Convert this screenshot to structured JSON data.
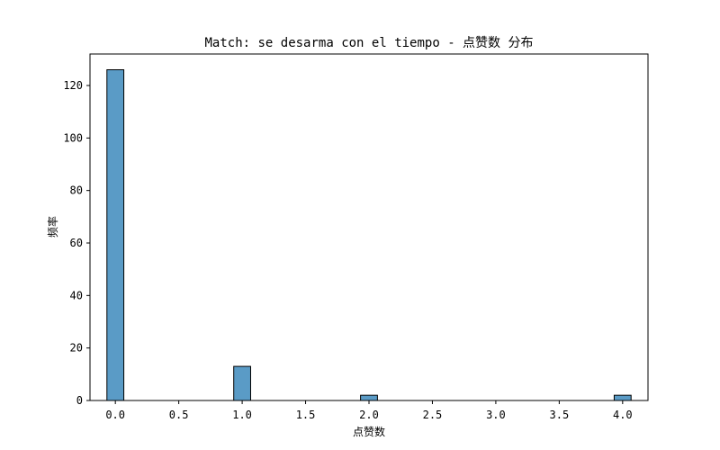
{
  "chart_data": {
    "type": "bar",
    "title": "Match: se desarma con el tiempo - 点赞数 分布",
    "xlabel": "点赞数",
    "ylabel": "频率",
    "xlim": [
      -0.2,
      4.2
    ],
    "ylim": [
      0,
      132
    ],
    "x_ticks": [
      0.0,
      0.5,
      1.0,
      1.5,
      2.0,
      2.5,
      3.0,
      3.5,
      4.0
    ],
    "x_tick_labels": [
      "0.0",
      "0.5",
      "1.0",
      "1.5",
      "2.0",
      "2.5",
      "3.0",
      "3.5",
      "4.0"
    ],
    "y_ticks": [
      0,
      20,
      40,
      60,
      80,
      100,
      120
    ],
    "y_tick_labels": [
      "0",
      "20",
      "40",
      "60",
      "80",
      "100",
      "120"
    ],
    "bar_width": 0.1333,
    "bars": [
      {
        "x": 0.0,
        "value": 126
      },
      {
        "x": 1.0,
        "value": 13
      },
      {
        "x": 2.0,
        "value": 2
      },
      {
        "x": 4.0,
        "value": 2
      }
    ],
    "bar_color": "#5a9bc6",
    "grid": false
  }
}
